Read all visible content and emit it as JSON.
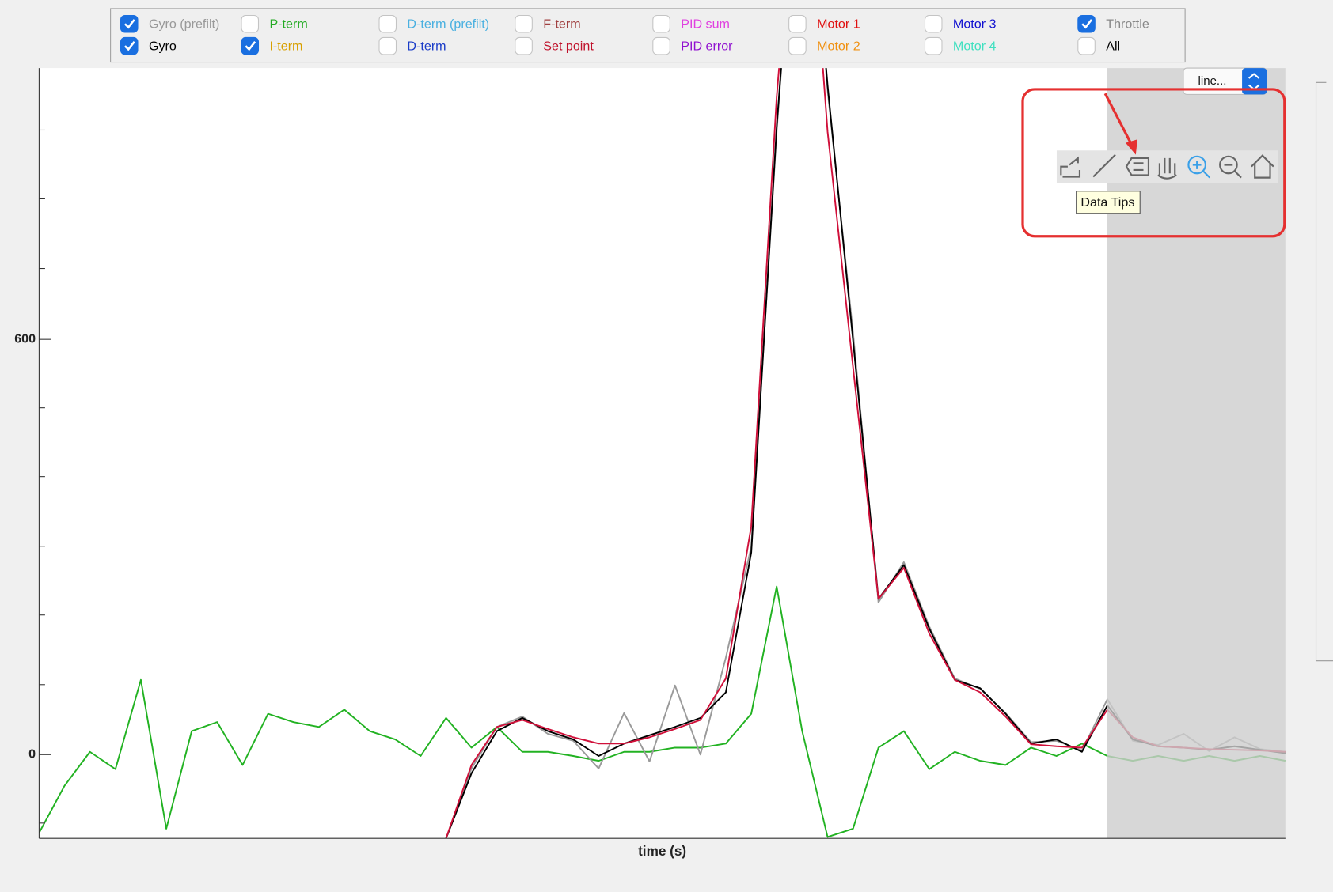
{
  "checkboxes": [
    {
      "label": "Gyro (prefilt)",
      "color": "#999999",
      "checked": true
    },
    {
      "label": "Gyro",
      "color": "#000000",
      "checked": true
    },
    {
      "label": "P-term",
      "color": "#22aa22",
      "checked": false
    },
    {
      "label": "I-term",
      "color": "#d8a000",
      "checked": true
    },
    {
      "label": "D-term (prefilt)",
      "color": "#4ab0e0",
      "checked": false
    },
    {
      "label": "D-term",
      "color": "#1a3cc8",
      "checked": false
    },
    {
      "label": "F-term",
      "color": "#a04040",
      "checked": false
    },
    {
      "label": "Set point",
      "color": "#c0102a",
      "checked": false
    },
    {
      "label": "PID sum",
      "color": "#e040e0",
      "checked": false
    },
    {
      "label": "PID error",
      "color": "#9010d0",
      "checked": false
    },
    {
      "label": "Motor 1",
      "color": "#e01010",
      "checked": false
    },
    {
      "label": "Motor 2",
      "color": "#f09010",
      "checked": false
    },
    {
      "label": "Motor 3",
      "color": "#1010d0",
      "checked": false
    },
    {
      "label": "Motor 4",
      "color": "#40e0c0",
      "checked": false
    },
    {
      "label": "Throttle",
      "color": "#888888",
      "checked": true
    },
    {
      "label": "All",
      "color": "#000000",
      "checked": false
    }
  ],
  "dropdown": "line...",
  "tooltip": "Data Tips",
  "chart_data": {
    "type": "line",
    "xlabel": "time (s)",
    "ylim": [
      -121,
      992
    ],
    "yticks": [
      0,
      600
    ],
    "series": [
      {
        "color": "#22b222",
        "values": [
          -113,
          -45,
          4,
          -21,
          108,
          -107,
          34,
          47,
          -15,
          59,
          47,
          40,
          65,
          34,
          22,
          -2,
          53,
          10,
          40,
          4,
          4,
          -2,
          -9,
          4,
          4,
          10,
          10,
          16,
          59,
          243,
          34,
          -119,
          -107,
          10,
          34,
          -21,
          4,
          -9,
          -15,
          10,
          -2,
          16,
          -2,
          -9,
          -2,
          -9,
          -2,
          -9,
          -2,
          -9
        ]
      },
      {
        "color": "#9a9a9a",
        "values": [
          null,
          null,
          null,
          null,
          null,
          null,
          null,
          null,
          null,
          null,
          null,
          null,
          null,
          null,
          null,
          null,
          -121,
          -20,
          40,
          55,
          30,
          20,
          -20,
          60,
          -10,
          100,
          0,
          140,
          300,
          900,
          1400,
          960,
          610,
          220,
          278,
          185,
          110,
          95,
          60,
          18,
          20,
          6,
          80,
          20,
          14,
          30,
          5,
          25,
          8,
          4
        ]
      },
      {
        "color": "#000000",
        "values": [
          null,
          null,
          null,
          null,
          null,
          null,
          null,
          null,
          null,
          null,
          null,
          null,
          null,
          null,
          null,
          null,
          -121,
          -27,
          34,
          53,
          34,
          22,
          -2,
          16,
          28,
          40,
          53,
          90,
          292,
          906,
          1400,
          967,
          599,
          225,
          274,
          182,
          108,
          96,
          59,
          16,
          22,
          4,
          71,
          22,
          12,
          10,
          7,
          12,
          7,
          2
        ]
      },
      {
        "color": "#d0103a",
        "values": [
          null,
          null,
          null,
          null,
          null,
          null,
          null,
          null,
          null,
          null,
          null,
          null,
          null,
          null,
          null,
          null,
          -121,
          -15,
          40,
          50,
          37,
          25,
          16,
          16,
          25,
          37,
          50,
          110,
          330,
          950,
          1400,
          900,
          560,
          225,
          270,
          175,
          108,
          90,
          55,
          15,
          12,
          10,
          65,
          25,
          12,
          10,
          8,
          7,
          6,
          4
        ]
      }
    ]
  }
}
